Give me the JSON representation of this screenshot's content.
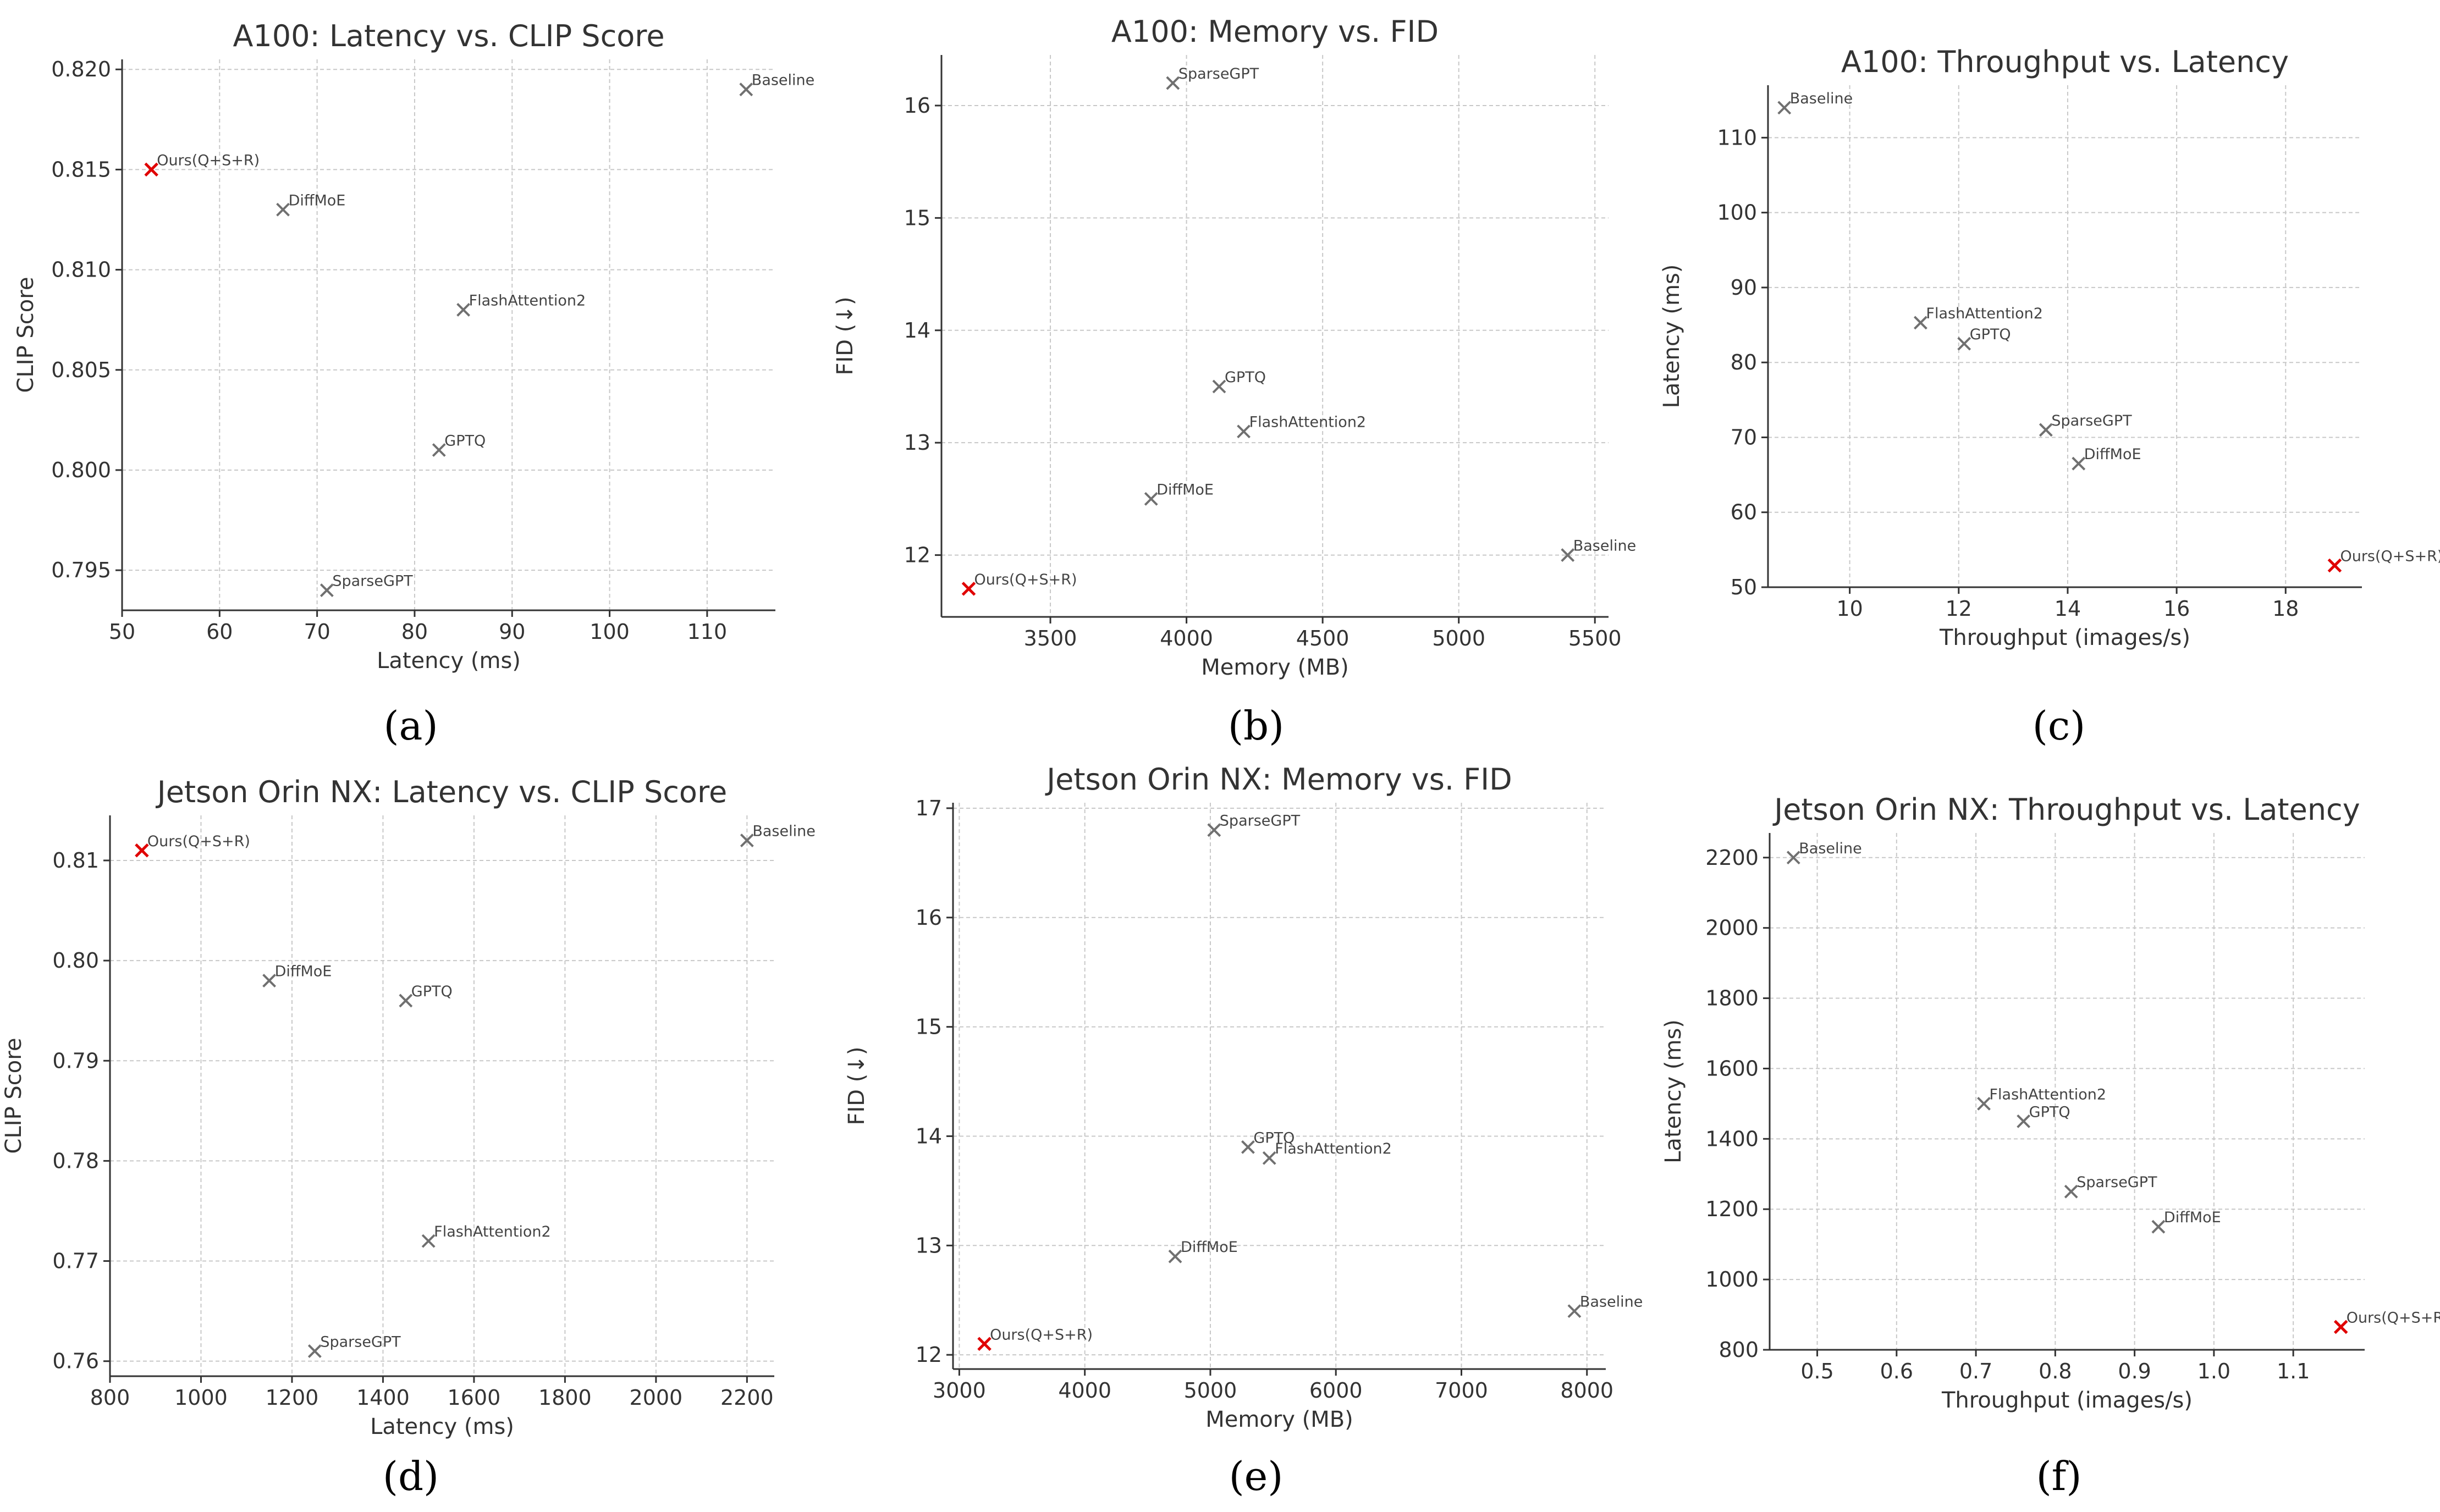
{
  "figure": {
    "panel_labels": [
      "(a)",
      "(b)",
      "(c)",
      "(d)",
      "(e)",
      "(f)"
    ]
  },
  "colors": {
    "default_marker": "#707070",
    "highlight_marker": "#e00000"
  },
  "chart_data": [
    {
      "id": "a",
      "type": "scatter",
      "title": "A100: Latency vs. CLIP Score",
      "xlabel": "Latency (ms)",
      "ylabel": "CLIP Score",
      "xlim": [
        50,
        117
      ],
      "ylim": [
        0.793,
        0.8205
      ],
      "xticks": [
        50,
        60,
        70,
        80,
        90,
        100,
        110
      ],
      "yticks": [
        0.795,
        0.8,
        0.805,
        0.81,
        0.815,
        0.82
      ],
      "ytick_decimals": 3,
      "xtick_decimals": 0,
      "points": [
        {
          "label": "Baseline",
          "x": 114,
          "y": 0.819
        },
        {
          "label": "Ours(Q+S+R)",
          "x": 53,
          "y": 0.815,
          "highlight": true
        },
        {
          "label": "DiffMoE",
          "x": 66.5,
          "y": 0.813
        },
        {
          "label": "FlashAttention2",
          "x": 85,
          "y": 0.808
        },
        {
          "label": "GPTQ",
          "x": 82.5,
          "y": 0.801
        },
        {
          "label": "SparseGPT",
          "x": 71,
          "y": 0.794
        }
      ]
    },
    {
      "id": "b",
      "type": "scatter",
      "title": "A100: Memory vs. FID",
      "xlabel": "Memory (MB)",
      "ylabel": "FID (↓)",
      "xlim": [
        3100,
        5550
      ],
      "ylim": [
        11.45,
        16.45
      ],
      "xticks": [
        3500,
        4000,
        4500,
        5000,
        5500
      ],
      "yticks": [
        12,
        13,
        14,
        15,
        16
      ],
      "ytick_decimals": 0,
      "xtick_decimals": 0,
      "points": [
        {
          "label": "SparseGPT",
          "x": 3950,
          "y": 16.2
        },
        {
          "label": "GPTQ",
          "x": 4120,
          "y": 13.5
        },
        {
          "label": "FlashAttention2",
          "x": 4210,
          "y": 13.1
        },
        {
          "label": "DiffMoE",
          "x": 3870,
          "y": 12.5
        },
        {
          "label": "Baseline",
          "x": 5400,
          "y": 12.0
        },
        {
          "label": "Ours(Q+S+R)",
          "x": 3200,
          "y": 11.7,
          "highlight": true
        }
      ]
    },
    {
      "id": "c",
      "type": "scatter",
      "title": "A100: Throughput vs. Latency",
      "xlabel": "Throughput (images/s)",
      "ylabel": "Latency (ms)",
      "xlim": [
        8.5,
        19.4
      ],
      "ylim": [
        50,
        117
      ],
      "xticks": [
        10,
        12,
        14,
        16,
        18
      ],
      "yticks": [
        50,
        60,
        70,
        80,
        90,
        100,
        110
      ],
      "ytick_decimals": 0,
      "xtick_decimals": 0,
      "points": [
        {
          "label": "Baseline",
          "x": 8.8,
          "y": 114
        },
        {
          "label": "FlashAttention2",
          "x": 11.3,
          "y": 85.3
        },
        {
          "label": "GPTQ",
          "x": 12.1,
          "y": 82.5
        },
        {
          "label": "SparseGPT",
          "x": 13.6,
          "y": 71
        },
        {
          "label": "DiffMoE",
          "x": 14.2,
          "y": 66.5
        },
        {
          "label": "Ours(Q+S+R)",
          "x": 18.9,
          "y": 52.9,
          "highlight": true
        }
      ]
    },
    {
      "id": "d",
      "type": "scatter",
      "title": "Jetson Orin NX: Latency vs. CLIP Score",
      "xlabel": "Latency (ms)",
      "ylabel": "CLIP Score",
      "xlim": [
        800,
        2260
      ],
      "ylim": [
        0.7585,
        0.8145
      ],
      "xticks": [
        800,
        1000,
        1200,
        1400,
        1600,
        1800,
        2000,
        2200
      ],
      "yticks": [
        0.76,
        0.77,
        0.78,
        0.79,
        0.8,
        0.81
      ],
      "ytick_decimals": 2,
      "xtick_decimals": 0,
      "points": [
        {
          "label": "Ours(Q+S+R)",
          "x": 870,
          "y": 0.811,
          "highlight": true
        },
        {
          "label": "Baseline",
          "x": 2200,
          "y": 0.812
        },
        {
          "label": "DiffMoE",
          "x": 1150,
          "y": 0.798
        },
        {
          "label": "GPTQ",
          "x": 1450,
          "y": 0.796
        },
        {
          "label": "FlashAttention2",
          "x": 1500,
          "y": 0.772
        },
        {
          "label": "SparseGPT",
          "x": 1250,
          "y": 0.761
        }
      ]
    },
    {
      "id": "e",
      "type": "scatter",
      "title": "Jetson Orin NX: Memory vs. FID",
      "xlabel": "Memory (MB)",
      "ylabel": "FID (↓)",
      "xlim": [
        2950,
        8150
      ],
      "ylim": [
        11.87,
        17.05
      ],
      "xticks": [
        3000,
        4000,
        5000,
        6000,
        7000,
        8000
      ],
      "yticks": [
        12,
        13,
        14,
        15,
        16,
        17
      ],
      "ytick_decimals": 0,
      "xtick_decimals": 0,
      "points": [
        {
          "label": "SparseGPT",
          "x": 5030,
          "y": 16.8
        },
        {
          "label": "GPTQ",
          "x": 5300,
          "y": 13.9
        },
        {
          "label": "FlashAttention2",
          "x": 5470,
          "y": 13.8
        },
        {
          "label": "DiffMoE",
          "x": 4720,
          "y": 12.9
        },
        {
          "label": "Baseline",
          "x": 7900,
          "y": 12.4
        },
        {
          "label": "Ours(Q+S+R)",
          "x": 3200,
          "y": 12.1,
          "highlight": true
        }
      ]
    },
    {
      "id": "f",
      "type": "scatter",
      "title": "Jetson Orin NX: Throughput vs. Latency",
      "xlabel": "Throughput (images/s)",
      "ylabel": "Latency (ms)",
      "xlim": [
        0.44,
        1.19
      ],
      "ylim": [
        800,
        2270
      ],
      "xticks": [
        0.5,
        0.6,
        0.7,
        0.8,
        0.9,
        1.0,
        1.1
      ],
      "yticks": [
        800,
        1000,
        1200,
        1400,
        1600,
        1800,
        2000,
        2200
      ],
      "ytick_decimals": 0,
      "xtick_decimals": 1,
      "points": [
        {
          "label": "Baseline",
          "x": 0.47,
          "y": 2200
        },
        {
          "label": "FlashAttention2",
          "x": 0.71,
          "y": 1500
        },
        {
          "label": "GPTQ",
          "x": 0.76,
          "y": 1450
        },
        {
          "label": "SparseGPT",
          "x": 0.82,
          "y": 1250
        },
        {
          "label": "DiffMoE",
          "x": 0.93,
          "y": 1150
        },
        {
          "label": "Ours(Q+S+R)",
          "x": 1.16,
          "y": 865,
          "highlight": true
        }
      ]
    }
  ]
}
